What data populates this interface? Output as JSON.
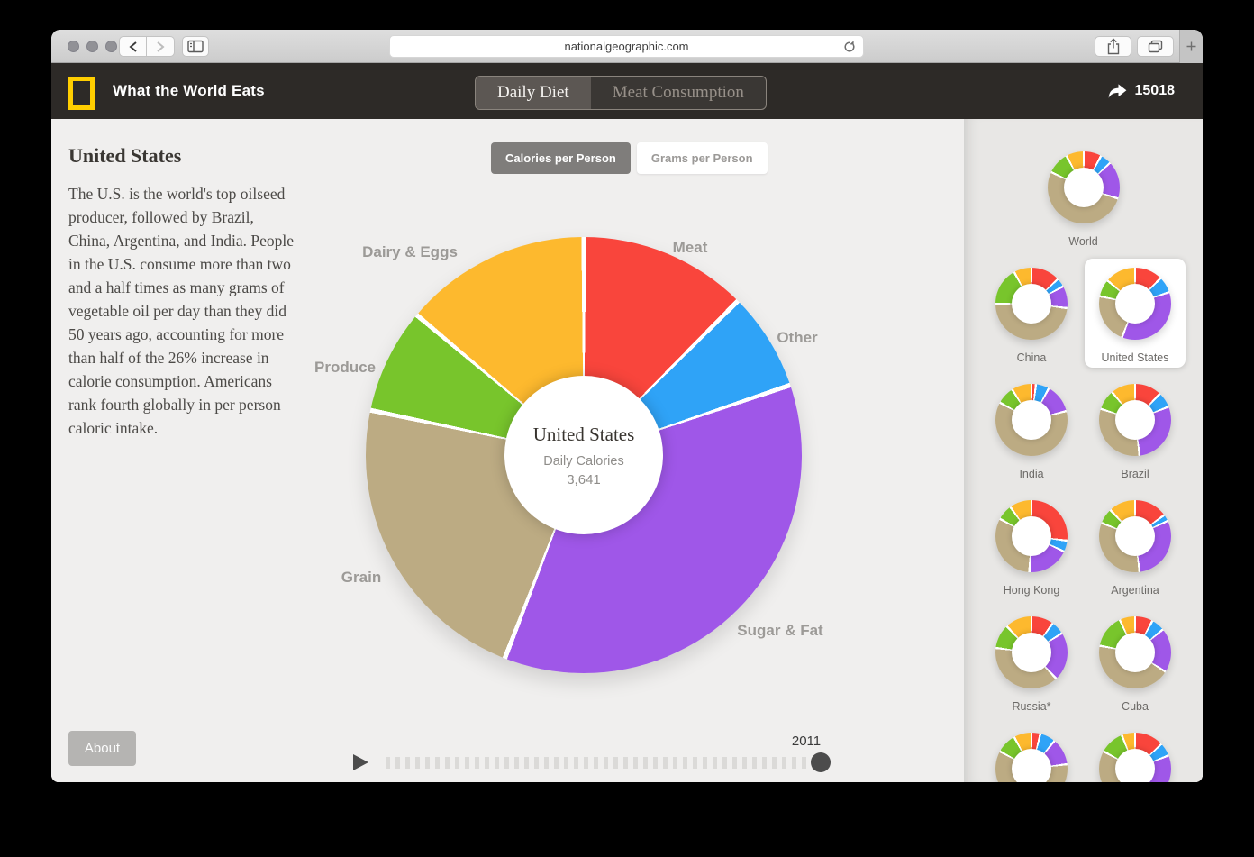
{
  "browser": {
    "url": "nationalgeographic.com"
  },
  "header": {
    "brand": "What the World Eats",
    "tabs": [
      {
        "label": "Daily Diet",
        "active": true
      },
      {
        "label": "Meat Consumption",
        "active": false
      }
    ],
    "share_count": "15018"
  },
  "main": {
    "country": "United States",
    "description": "The U.S. is the world's top oilseed producer, followed by Brazil, China, Argentina, and India. People in the U.S. consume more than two and a half times as many grams of vegetable oil per day than they did 50 years ago, accounting for more than half of the 26% increase in calorie consumption. Americans rank fourth globally in per person caloric intake.",
    "about_label": "About",
    "unit_toggle": [
      {
        "label": "Calories per Person",
        "active": true
      },
      {
        "label": "Grams per Person",
        "active": false
      }
    ],
    "timeline": {
      "year": "2011"
    }
  },
  "chart_data": {
    "type": "pie",
    "subtype": "donut",
    "title": "United States Daily Diet",
    "units": "Calories per Person",
    "year": "2011",
    "total": 3641,
    "center": {
      "title": "United States",
      "subtitle": "Daily Calories",
      "value": "3,641"
    },
    "start": "top, clockwise",
    "legend_position": "labels around donut",
    "segments": [
      {
        "label": "Meat",
        "color": "#f9453c",
        "pct": 12.5,
        "calories_est": 454
      },
      {
        "label": "Other",
        "color": "#2fa3f7",
        "pct": 7.3,
        "calories_est": 265
      },
      {
        "label": "Sugar & Fat",
        "color": "#9f57e8",
        "pct": 36.1,
        "calories_est": 1315
      },
      {
        "label": "Grain",
        "color": "#bcab83",
        "pct": 22.4,
        "calories_est": 815
      },
      {
        "label": "Produce",
        "color": "#78c52c",
        "pct": 7.8,
        "calories_est": 284
      },
      {
        "label": "Dairy & Eggs",
        "color": "#fdb92e",
        "pct": 13.9,
        "calories_est": 508
      }
    ]
  },
  "sidebar": {
    "segment_order": [
      "Meat",
      "Other",
      "Sugar & Fat",
      "Grain",
      "Produce",
      "Dairy & Eggs"
    ],
    "segment_colors": [
      "#f9453c",
      "#2fa3f7",
      "#9f57e8",
      "#bcab83",
      "#78c52c",
      "#fdb92e"
    ],
    "items": [
      {
        "label": "World",
        "selected": false,
        "pcts": [
          8,
          5,
          17,
          52,
          10,
          8
        ]
      },
      {
        "label": "China",
        "selected": false,
        "pcts": [
          13,
          4,
          10,
          48,
          17,
          8
        ]
      },
      {
        "label": "United States",
        "selected": true,
        "pcts": [
          12.5,
          7.3,
          36.1,
          22.4,
          7.8,
          13.9
        ]
      },
      {
        "label": "India",
        "selected": false,
        "pcts": [
          2,
          6,
          13,
          62,
          8,
          9
        ]
      },
      {
        "label": "Brazil",
        "selected": false,
        "pcts": [
          12,
          7,
          29,
          32,
          9,
          11
        ]
      },
      {
        "label": "Hong Kong",
        "selected": false,
        "pcts": [
          27,
          5,
          19,
          32,
          7,
          10
        ]
      },
      {
        "label": "Argentina",
        "selected": false,
        "pcts": [
          15,
          3,
          30,
          33,
          7,
          12
        ]
      },
      {
        "label": "Russia*",
        "selected": false,
        "pcts": [
          10,
          6,
          22,
          39,
          11,
          12
        ]
      },
      {
        "label": "Cuba",
        "selected": false,
        "pcts": [
          8,
          6,
          20,
          44,
          15,
          7
        ]
      },
      {
        "label": "",
        "selected": false,
        "pcts": [
          4,
          7,
          12,
          60,
          9,
          8
        ]
      },
      {
        "label": "",
        "selected": false,
        "pcts": [
          13,
          6,
          22,
          42,
          11,
          6
        ]
      }
    ]
  }
}
